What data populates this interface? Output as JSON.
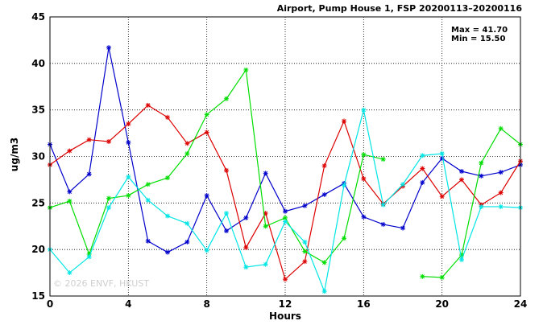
{
  "chart_data": {
    "type": "line",
    "title": "Airport, Pump House 1, FSP 20200113–20200116",
    "xlabel": "Hours",
    "ylabel": "ug/m3",
    "xlim": [
      0,
      24
    ],
    "ylim": [
      15,
      45
    ],
    "xticks": [
      0,
      4,
      8,
      12,
      16,
      20,
      24
    ],
    "yticks": [
      15,
      20,
      25,
      30,
      35,
      40,
      45
    ],
    "grid": true,
    "max_label": "Max = 41.70",
    "min_label": "Min = 15.50",
    "watermark": "© 2026 ENVF, HKUST",
    "x": [
      0,
      1,
      2,
      3,
      4,
      5,
      6,
      7,
      8,
      9,
      10,
      11,
      12,
      13,
      14,
      15,
      16,
      17,
      18,
      19,
      20,
      21,
      22,
      23,
      24
    ],
    "series": [
      {
        "color": "#0000cc",
        "values": [
          31.3,
          26.2,
          28.1,
          41.7,
          31.5,
          20.9,
          19.7,
          20.8,
          25.8,
          22.0,
          23.4,
          28.2,
          24.1,
          24.7,
          25.9,
          27.1,
          23.5,
          22.7,
          22.3,
          27.2,
          29.8,
          28.4,
          27.9,
          28.3,
          29.1
        ]
      },
      {
        "color": "#dd0000",
        "values": [
          29.1,
          30.6,
          31.8,
          31.6,
          33.5,
          35.5,
          34.2,
          31.4,
          32.6,
          28.5,
          20.2,
          23.9,
          16.8,
          18.7,
          29.0,
          33.8,
          27.6,
          24.9,
          26.8,
          28.7,
          25.7,
          27.5,
          24.8,
          26.1,
          29.5
        ]
      },
      {
        "color": "#00dd00",
        "values": [
          24.5,
          25.2,
          19.5,
          25.5,
          25.8,
          27.0,
          27.7,
          30.3,
          34.5,
          36.2,
          39.3,
          22.5,
          23.4,
          19.8,
          18.6,
          21.2,
          30.2,
          29.7,
          null,
          17.1,
          17.0,
          19.4,
          29.3,
          33.0,
          31.3
        ]
      },
      {
        "color": "#00e5e5",
        "values": [
          20.0,
          17.5,
          19.2,
          24.5,
          27.8,
          25.3,
          23.6,
          22.8,
          19.9,
          23.9,
          18.1,
          18.4,
          23.0,
          20.8,
          15.5,
          26.9,
          35.0,
          24.8,
          27.0,
          30.1,
          30.3,
          18.9,
          24.6,
          24.6,
          24.5
        ]
      }
    ]
  }
}
